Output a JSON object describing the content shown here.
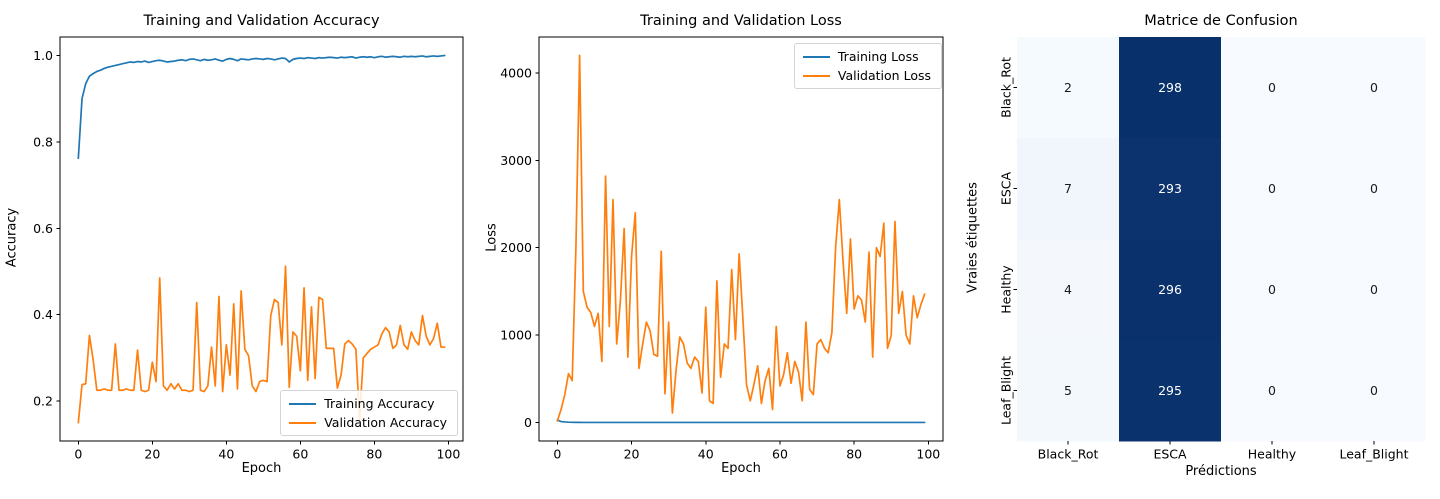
{
  "figure": {
    "background": "#ffffff",
    "text_color": "#000000"
  },
  "chart_data": [
    {
      "type": "line",
      "title": "Training and Validation Accuracy",
      "xlabel": "Epoch",
      "ylabel": "Accuracy",
      "xlim": [
        -4.95,
        103.95
      ],
      "ylim": [
        0.1075,
        1.0428
      ],
      "xticks": [
        0,
        20,
        40,
        60,
        80,
        100
      ],
      "xtick_labels": [
        "0",
        "20",
        "40",
        "60",
        "80",
        "100"
      ],
      "yticks": [
        0.2,
        0.4,
        0.6,
        0.8,
        1.0
      ],
      "ytick_labels": [
        "0.2",
        "0.4",
        "0.6",
        "0.8",
        "1.0"
      ],
      "grid": false,
      "legend": {
        "loc": "lower right"
      },
      "series": [
        {
          "name": "Training Accuracy",
          "color": "#1f77b4",
          "values": [
            0.762,
            0.9,
            0.935,
            0.952,
            0.958,
            0.963,
            0.966,
            0.97,
            0.973,
            0.975,
            0.977,
            0.979,
            0.981,
            0.983,
            0.985,
            0.984,
            0.986,
            0.985,
            0.987,
            0.984,
            0.986,
            0.988,
            0.989,
            0.987,
            0.985,
            0.986,
            0.987,
            0.989,
            0.99,
            0.988,
            0.991,
            0.992,
            0.99,
            0.988,
            0.991,
            0.989,
            0.99,
            0.992,
            0.989,
            0.987,
            0.991,
            0.993,
            0.991,
            0.988,
            0.992,
            0.991,
            0.99,
            0.992,
            0.993,
            0.992,
            0.991,
            0.993,
            0.992,
            0.99,
            0.992,
            0.994,
            0.993,
            0.985,
            0.991,
            0.993,
            0.994,
            0.993,
            0.995,
            0.994,
            0.993,
            0.995,
            0.994,
            0.995,
            0.996,
            0.995,
            0.994,
            0.996,
            0.995,
            0.996,
            0.997,
            0.994,
            0.996,
            0.997,
            0.996,
            0.997,
            0.995,
            0.997,
            0.998,
            0.996,
            0.997,
            0.998,
            0.997,
            0.996,
            0.998,
            0.997,
            0.998,
            0.997,
            0.998,
            0.999,
            0.997,
            0.998,
            0.999,
            0.998,
            0.999,
            1.0
          ]
        },
        {
          "name": "Validation Accuracy",
          "color": "#ff7f0e",
          "values": [
            0.15,
            0.238,
            0.24,
            0.352,
            0.296,
            0.225,
            0.225,
            0.228,
            0.225,
            0.225,
            0.332,
            0.225,
            0.225,
            0.228,
            0.225,
            0.225,
            0.318,
            0.225,
            0.222,
            0.225,
            0.29,
            0.245,
            0.485,
            0.235,
            0.225,
            0.24,
            0.228,
            0.24,
            0.225,
            0.225,
            0.222,
            0.225,
            0.428,
            0.225,
            0.222,
            0.235,
            0.325,
            0.235,
            0.442,
            0.222,
            0.33,
            0.26,
            0.425,
            0.228,
            0.455,
            0.32,
            0.305,
            0.235,
            0.222,
            0.245,
            0.248,
            0.245,
            0.398,
            0.435,
            0.428,
            0.33,
            0.512,
            0.232,
            0.36,
            0.35,
            0.27,
            0.462,
            0.248,
            0.418,
            0.252,
            0.44,
            0.435,
            0.322,
            0.322,
            0.322,
            0.23,
            0.26,
            0.332,
            0.34,
            0.332,
            0.32,
            0.158,
            0.3,
            0.31,
            0.32,
            0.325,
            0.33,
            0.355,
            0.37,
            0.36,
            0.322,
            0.33,
            0.375,
            0.33,
            0.32,
            0.36,
            0.34,
            0.33,
            0.398,
            0.35,
            0.33,
            0.345,
            0.38,
            0.325,
            0.325
          ]
        }
      ]
    },
    {
      "type": "line",
      "title": "Training and Validation Loss",
      "xlabel": "Epoch",
      "ylabel": "Loss",
      "xlim": [
        -4.95,
        103.95
      ],
      "ylim": [
        -210,
        4410
      ],
      "xticks": [
        0,
        20,
        40,
        60,
        80,
        100
      ],
      "xtick_labels": [
        "0",
        "20",
        "40",
        "60",
        "80",
        "100"
      ],
      "yticks": [
        0,
        1000,
        2000,
        3000,
        4000
      ],
      "ytick_labels": [
        "0",
        "1000",
        "2000",
        "3000",
        "4000"
      ],
      "grid": false,
      "legend": {
        "loc": "upper right"
      },
      "series": [
        {
          "name": "Training Loss",
          "color": "#1f77b4",
          "values": [
            30,
            12,
            8,
            5,
            4,
            3,
            3,
            2,
            2,
            2,
            2,
            2,
            2,
            2,
            2,
            2,
            2,
            2,
            2,
            2,
            2,
            2,
            2,
            2,
            2,
            2,
            2,
            2,
            2,
            2,
            2,
            2,
            2,
            2,
            2,
            2,
            2,
            2,
            2,
            2,
            2,
            2,
            2,
            2,
            2,
            2,
            2,
            2,
            2,
            2,
            2,
            2,
            2,
            2,
            2,
            2,
            2,
            2,
            2,
            2,
            2,
            2,
            2,
            2,
            2,
            2,
            2,
            2,
            2,
            2,
            2,
            2,
            2,
            2,
            2,
            2,
            2,
            2,
            2,
            2,
            2,
            2,
            2,
            2,
            2,
            2,
            2,
            2,
            2,
            2,
            2,
            2,
            2,
            2,
            2,
            2,
            2,
            2,
            2,
            2
          ]
        },
        {
          "name": "Validation Loss",
          "color": "#ff7f0e",
          "values": [
            20,
            150,
            320,
            560,
            480,
            2000,
            4200,
            1500,
            1320,
            1260,
            1100,
            1250,
            700,
            2820,
            1100,
            2550,
            900,
            1400,
            2220,
            750,
            1900,
            2400,
            620,
            900,
            1150,
            1050,
            780,
            760,
            1960,
            330,
            1150,
            110,
            600,
            980,
            900,
            680,
            620,
            750,
            700,
            340,
            1320,
            250,
            220,
            1620,
            520,
            900,
            850,
            1750,
            950,
            1930,
            1200,
            430,
            250,
            440,
            650,
            220,
            480,
            620,
            150,
            1100,
            420,
            550,
            800,
            450,
            700,
            580,
            250,
            1150,
            380,
            320,
            900,
            950,
            850,
            800,
            1030,
            2000,
            2550,
            1850,
            1250,
            2100,
            1300,
            1450,
            1400,
            1150,
            1950,
            750,
            2000,
            1900,
            2280,
            850,
            1000,
            2300,
            1250,
            1500,
            1000,
            900,
            1450,
            1200,
            1350,
            1470
          ]
        }
      ]
    },
    {
      "type": "heatmap",
      "title": "Matrice de Confusion",
      "xlabel": "Prédictions",
      "ylabel": "Vraies étiquettes",
      "row_labels": [
        "Black_Rot",
        "ESCA",
        "Healthy",
        "Leaf_Blight"
      ],
      "col_labels": [
        "Black_Rot",
        "ESCA",
        "Healthy",
        "Leaf_Blight"
      ],
      "matrix": [
        [
          2,
          298,
          0,
          0
        ],
        [
          7,
          293,
          0,
          0
        ],
        [
          4,
          296,
          0,
          0
        ],
        [
          5,
          295,
          0,
          0
        ]
      ],
      "vmin": 0,
      "vmax": 298,
      "colors": {
        "low": "#f7fbff",
        "high": "#08306b",
        "annot_on_light": "#1a1a1a",
        "annot_on_dark": "#ffffff"
      }
    }
  ]
}
